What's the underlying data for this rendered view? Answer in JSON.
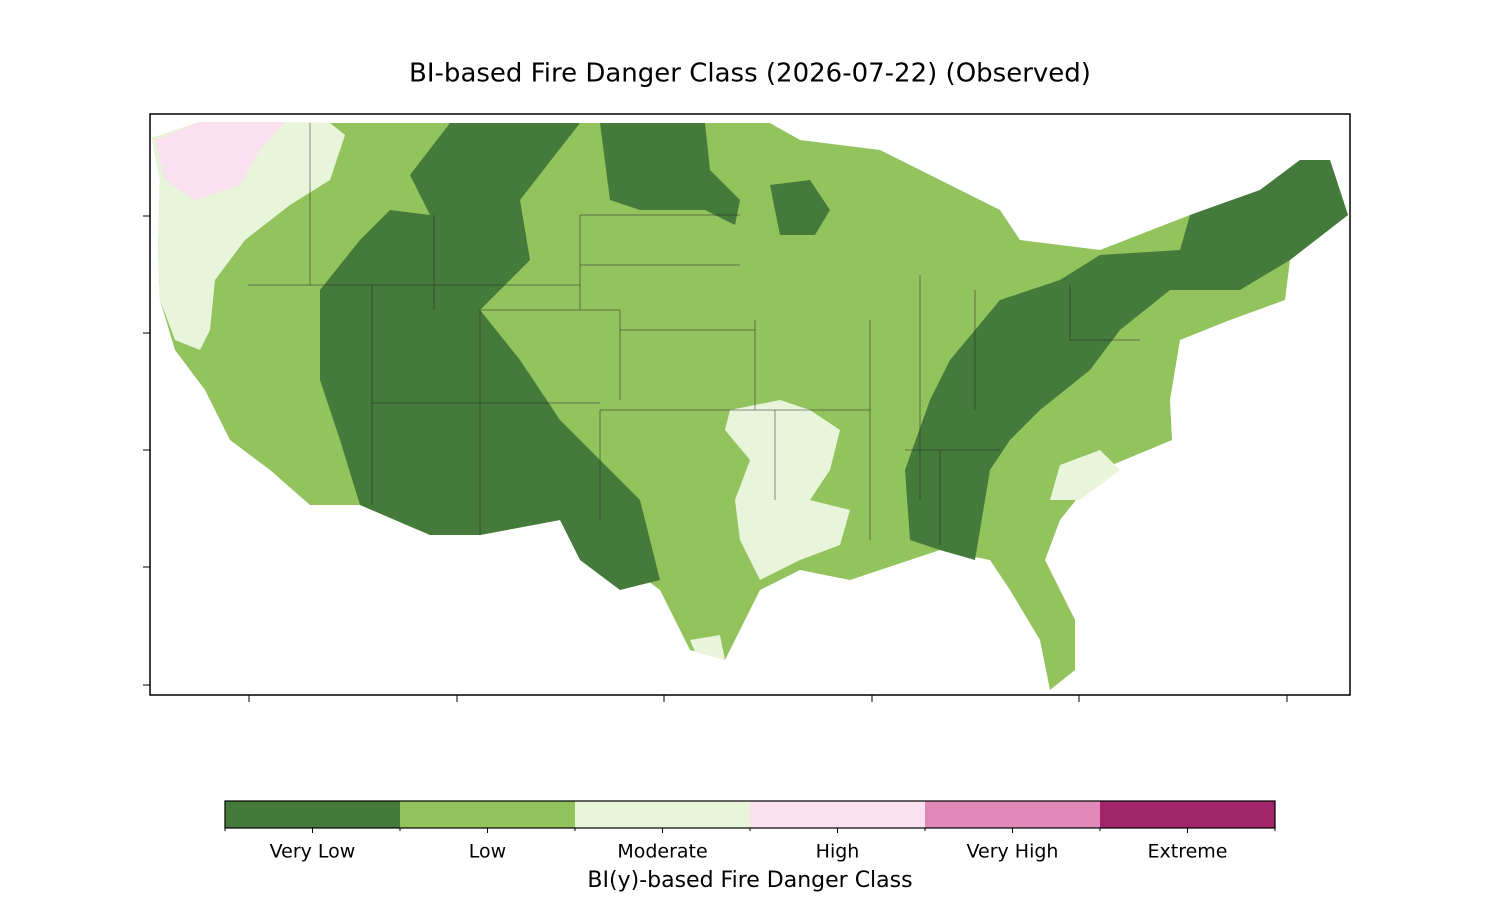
{
  "title": "BI-based Fire Danger Class (2026-07-22) (Observed)",
  "colorbar": {
    "label": "BI(y)-based Fire Danger Class",
    "classes": [
      {
        "label": "Very Low",
        "color": "#447b3b"
      },
      {
        "label": "Low",
        "color": "#92c35d"
      },
      {
        "label": "Moderate",
        "color": "#e8f5da"
      },
      {
        "label": "High",
        "color": "#fbe0ef"
      },
      {
        "label": "Very High",
        "color": "#e288b8"
      },
      {
        "label": "Extreme",
        "color": "#a2246a"
      }
    ]
  }
}
